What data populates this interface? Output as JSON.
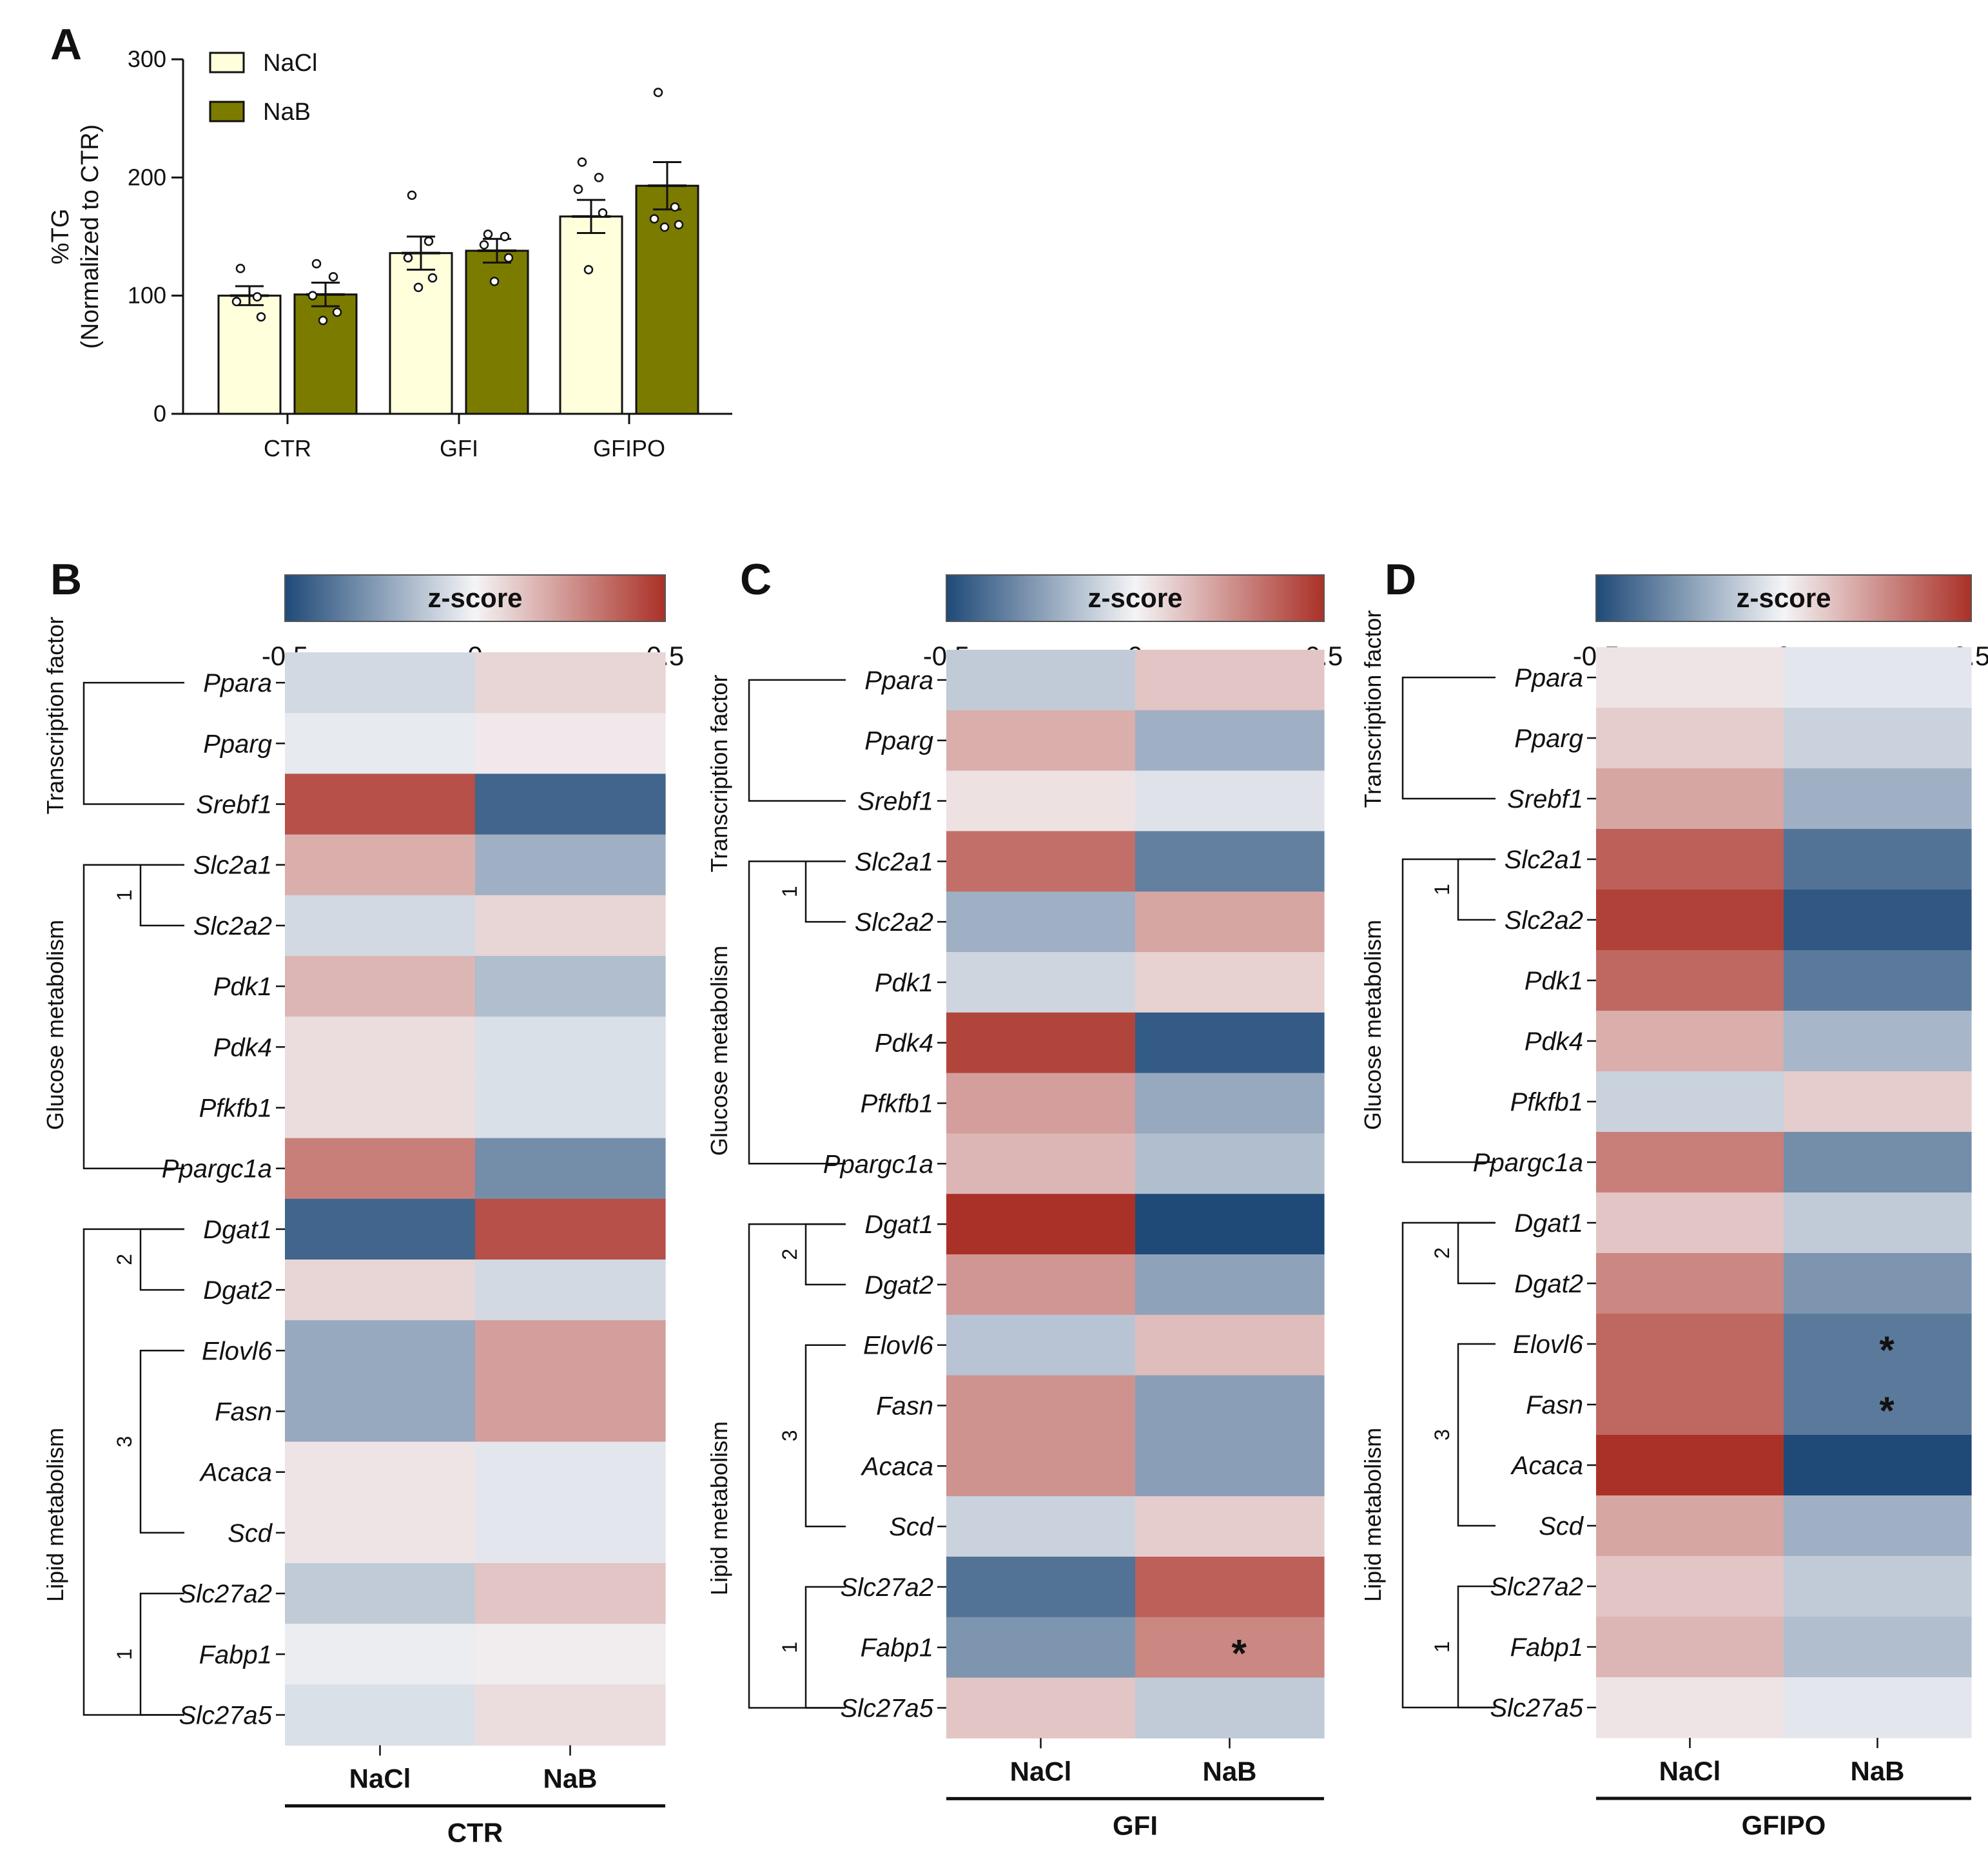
{
  "chart_data": [
    {
      "panel": "A",
      "type": "bar",
      "ylabel": "%TG",
      "ylabel2": "(Normalized to CTR)",
      "ylim": [
        0,
        300
      ],
      "yticks": [
        0,
        100,
        200,
        300
      ],
      "categories": [
        "CTR",
        "GFI",
        "GFIPO"
      ],
      "legend": [
        "NaCl",
        "NaB"
      ],
      "legend_position": "top-left",
      "colors": {
        "NaCl": "#ffffdc",
        "NaB": "#7b7b00"
      },
      "series": [
        {
          "name": "NaCl",
          "values": [
            100,
            136,
            167
          ],
          "sem": [
            8,
            14,
            14
          ],
          "points": [
            [
              123,
              99,
              95,
              82
            ],
            [
              185,
              146,
              132,
              115,
              107
            ],
            [
              213,
              200,
              190,
              170,
              122
            ]
          ]
        },
        {
          "name": "NaB",
          "values": [
            101,
            138,
            193
          ],
          "sem": [
            10,
            10,
            20
          ],
          "points": [
            [
              127,
              116,
              100,
              86,
              79
            ],
            [
              152,
              150,
              143,
              132,
              112
            ],
            [
              272,
              175,
              165,
              160,
              158
            ]
          ]
        }
      ]
    },
    {
      "panel": "B",
      "type": "heatmap",
      "colorbar_title": "z-score",
      "colorbar_ticks": [
        "-0.5",
        "0",
        "0.5"
      ],
      "zlim": [
        -0.5,
        0.5
      ],
      "columns": [
        "NaCl",
        "NaB"
      ],
      "group_label": "CTR",
      "rows": [
        "Ppara",
        "Pparg",
        "Srebf1",
        "Slc2a1",
        "Slc2a2",
        "Pdk1",
        "Pdk4",
        "Pfkfb1",
        "Ppargc1a",
        "Dgat1",
        "Dgat2",
        "Elovl6",
        "Fasn",
        "Acaca",
        "Scd",
        "Slc27a2",
        "Fabp1",
        "Slc27a5"
      ],
      "categories": [
        "Transcription factor",
        "Glucose metabolism",
        "Lipid metabolism"
      ],
      "cluster_labels": [
        "1",
        "2",
        "3",
        "1"
      ],
      "values": [
        [
          -0.08,
          0.08
        ],
        [
          -0.03,
          0.03
        ],
        [
          0.42,
          -0.42
        ],
        [
          0.18,
          -0.2
        ],
        [
          -0.08,
          0.08
        ],
        [
          0.16,
          -0.16
        ],
        [
          0.06,
          -0.06
        ],
        [
          0.06,
          -0.06
        ],
        [
          0.3,
          -0.3
        ],
        [
          -0.42,
          0.42
        ],
        [
          0.08,
          -0.08
        ],
        [
          -0.22,
          0.22
        ],
        [
          -0.22,
          0.22
        ],
        [
          0.04,
          -0.04
        ],
        [
          0.04,
          -0.04
        ],
        [
          -0.12,
          0.12
        ],
        [
          -0.02,
          0.02
        ],
        [
          -0.06,
          0.06
        ]
      ],
      "annotations": []
    },
    {
      "panel": "C",
      "type": "heatmap",
      "colorbar_title": "z-score",
      "colorbar_ticks": [
        "-0.5",
        "0",
        "0.5"
      ],
      "zlim": [
        -0.5,
        0.5
      ],
      "columns": [
        "NaCl",
        "NaB"
      ],
      "group_label": "GFI",
      "rows": [
        "Ppara",
        "Pparg",
        "Srebf1",
        "Slc2a1",
        "Slc2a2",
        "Pdk1",
        "Pdk4",
        "Pfkfb1",
        "Ppargc1a",
        "Dgat1",
        "Dgat2",
        "Elovl6",
        "Fasn",
        "Acaca",
        "Scd",
        "Slc27a2",
        "Fabp1",
        "Slc27a5"
      ],
      "categories": [
        "Transcription factor",
        "Glucose metabolism",
        "Lipid metabolism"
      ],
      "cluster_labels": [
        "1",
        "2",
        "3",
        "1"
      ],
      "values": [
        [
          -0.12,
          0.12
        ],
        [
          0.18,
          -0.2
        ],
        [
          0.05,
          -0.05
        ],
        [
          0.34,
          -0.34
        ],
        [
          -0.2,
          0.2
        ],
        [
          -0.09,
          0.09
        ],
        [
          0.45,
          -0.45
        ],
        [
          0.22,
          -0.22
        ],
        [
          0.16,
          -0.16
        ],
        [
          0.5,
          -0.5
        ],
        [
          0.24,
          -0.24
        ],
        [
          -0.14,
          0.14
        ],
        [
          0.25,
          -0.25
        ],
        [
          0.25,
          -0.25
        ],
        [
          -0.1,
          0.1
        ],
        [
          -0.38,
          0.38
        ],
        [
          -0.28,
          0.28
        ],
        [
          0.12,
          -0.12
        ]
      ],
      "annotations": [
        {
          "row": "Fabp1",
          "column": "NaB",
          "text": "*"
        }
      ]
    },
    {
      "panel": "D",
      "type": "heatmap",
      "colorbar_title": "z-score",
      "colorbar_ticks": [
        "-0.5",
        "0",
        "0.5"
      ],
      "zlim": [
        -0.5,
        0.5
      ],
      "columns": [
        "NaCl",
        "NaB"
      ],
      "group_label": "GFIPO",
      "rows": [
        "Ppara",
        "Pparg",
        "Srebf1",
        "Slc2a1",
        "Slc2a2",
        "Pdk1",
        "Pdk4",
        "Pfkfb1",
        "Ppargc1a",
        "Dgat1",
        "Dgat2",
        "Elovl6",
        "Fasn",
        "Acaca",
        "Scd",
        "Slc27a2",
        "Fabp1",
        "Slc27a5"
      ],
      "categories": [
        "Transcription factor",
        "Glucose metabolism",
        "Lipid metabolism"
      ],
      "cluster_labels": [
        "1",
        "2",
        "3",
        "1"
      ],
      "values": [
        [
          0.04,
          -0.04
        ],
        [
          0.1,
          -0.1
        ],
        [
          0.2,
          -0.2
        ],
        [
          0.38,
          -0.38
        ],
        [
          0.46,
          -0.46
        ],
        [
          0.36,
          -0.36
        ],
        [
          0.18,
          -0.18
        ],
        [
          -0.1,
          0.1
        ],
        [
          0.3,
          -0.3
        ],
        [
          0.12,
          -0.12
        ],
        [
          0.28,
          -0.28
        ],
        [
          0.36,
          -0.36
        ],
        [
          0.36,
          -0.36
        ],
        [
          0.5,
          -0.5
        ],
        [
          0.2,
          -0.2
        ],
        [
          0.12,
          -0.12
        ],
        [
          0.16,
          -0.16
        ],
        [
          0.04,
          -0.04
        ]
      ],
      "annotations": [
        {
          "row": "Elovl6",
          "column": "NaB",
          "text": "*"
        },
        {
          "row": "Fasn",
          "column": "NaB",
          "text": "*"
        }
      ]
    }
  ]
}
